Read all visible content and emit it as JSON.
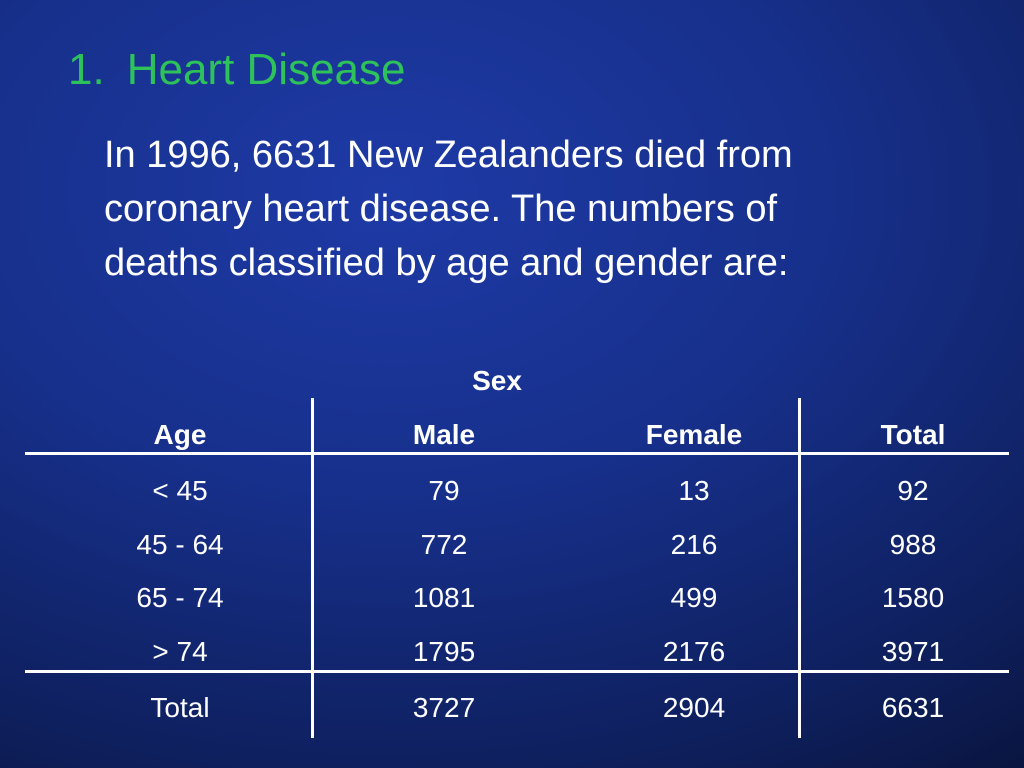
{
  "title": {
    "number": "1.",
    "text": "Heart Disease"
  },
  "intro": {
    "lines": [
      "In 1996, 6631 New Zealanders died from",
      "coronary heart disease. The numbers of",
      "deaths classified by age and gender are:"
    ]
  },
  "table": {
    "group_header": "Sex",
    "headers": [
      "Age",
      "Male",
      "Female",
      "Total"
    ],
    "rows": [
      [
        "< 45",
        "79",
        "13",
        "92"
      ],
      [
        "45 - 64",
        "772",
        "216",
        "988"
      ],
      [
        "65 - 74",
        "1081",
        "499",
        "1580"
      ],
      [
        "> 74",
        "1795",
        "2176",
        "3971"
      ]
    ],
    "total_row": [
      "Total",
      "3727",
      "2904",
      "6631"
    ]
  }
}
